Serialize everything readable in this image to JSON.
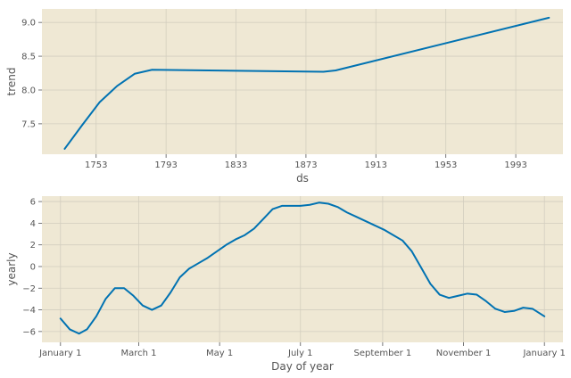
{
  "chart_data": [
    {
      "type": "line",
      "xlabel": "ds",
      "ylabel": "trend",
      "xlim": [
        1722,
        2020
      ],
      "ylim": [
        7.05,
        9.2
      ],
      "xticks": [
        1753,
        1793,
        1833,
        1873,
        1913,
        1953,
        1993
      ],
      "xtick_labels": [
        "1753",
        "1793",
        "1833",
        "1873",
        "1913",
        "1953",
        "1993"
      ],
      "yticks": [
        7.5,
        8.0,
        8.5,
        9.0
      ],
      "ytick_labels": [
        "7.5",
        "8.0",
        "8.5",
        "9.0"
      ],
      "grid": true,
      "color": "#0072b2",
      "series": [
        {
          "x": [
            1735,
            1745,
            1755,
            1765,
            1775,
            1785,
            1883,
            1890,
            2012
          ],
          "y": [
            7.13,
            7.48,
            7.82,
            8.06,
            8.24,
            8.3,
            8.27,
            8.29,
            9.07
          ]
        }
      ]
    },
    {
      "type": "line",
      "xlabel": "Day of year",
      "ylabel": "yearly",
      "xlim": [
        -14,
        379
      ],
      "ylim": [
        -7,
        6.5
      ],
      "xticks": [
        0,
        59,
        120,
        181,
        243,
        304,
        365
      ],
      "xtick_labels": [
        "January 1",
        "March 1",
        "May 1",
        "July 1",
        "September 1",
        "November 1",
        "January 1"
      ],
      "yticks": [
        -6,
        -4,
        -2,
        0,
        2,
        4,
        6
      ],
      "ytick_labels": [
        "−6",
        "−4",
        "−2",
        "0",
        "2",
        "4",
        "6"
      ],
      "grid": true,
      "color": "#0072b2",
      "series": [
        {
          "x": [
            0,
            7,
            14,
            20,
            27,
            34,
            41,
            48,
            55,
            62,
            69,
            76,
            83,
            90,
            97,
            104,
            111,
            118,
            125,
            132,
            139,
            146,
            153,
            160,
            167,
            174,
            181,
            188,
            195,
            202,
            209,
            216,
            223,
            230,
            237,
            244,
            251,
            258,
            265,
            272,
            279,
            286,
            293,
            300,
            307,
            314,
            321,
            328,
            335,
            342,
            349,
            356,
            365
          ],
          "y": [
            -4.8,
            -5.8,
            -6.2,
            -5.8,
            -4.6,
            -3.0,
            -2.0,
            -2.0,
            -2.7,
            -3.6,
            -4.0,
            -3.6,
            -2.4,
            -1.0,
            -0.2,
            0.3,
            0.8,
            1.4,
            2.0,
            2.5,
            2.9,
            3.5,
            4.4,
            5.3,
            5.6,
            5.6,
            5.6,
            5.7,
            5.9,
            5.8,
            5.5,
            5.0,
            4.6,
            4.2,
            3.8,
            3.4,
            2.9,
            2.4,
            1.4,
            -0.1,
            -1.6,
            -2.6,
            -2.9,
            -2.7,
            -2.5,
            -2.6,
            -3.2,
            -3.9,
            -4.2,
            -4.1,
            -3.8,
            -3.9,
            -4.6
          ]
        }
      ]
    }
  ]
}
